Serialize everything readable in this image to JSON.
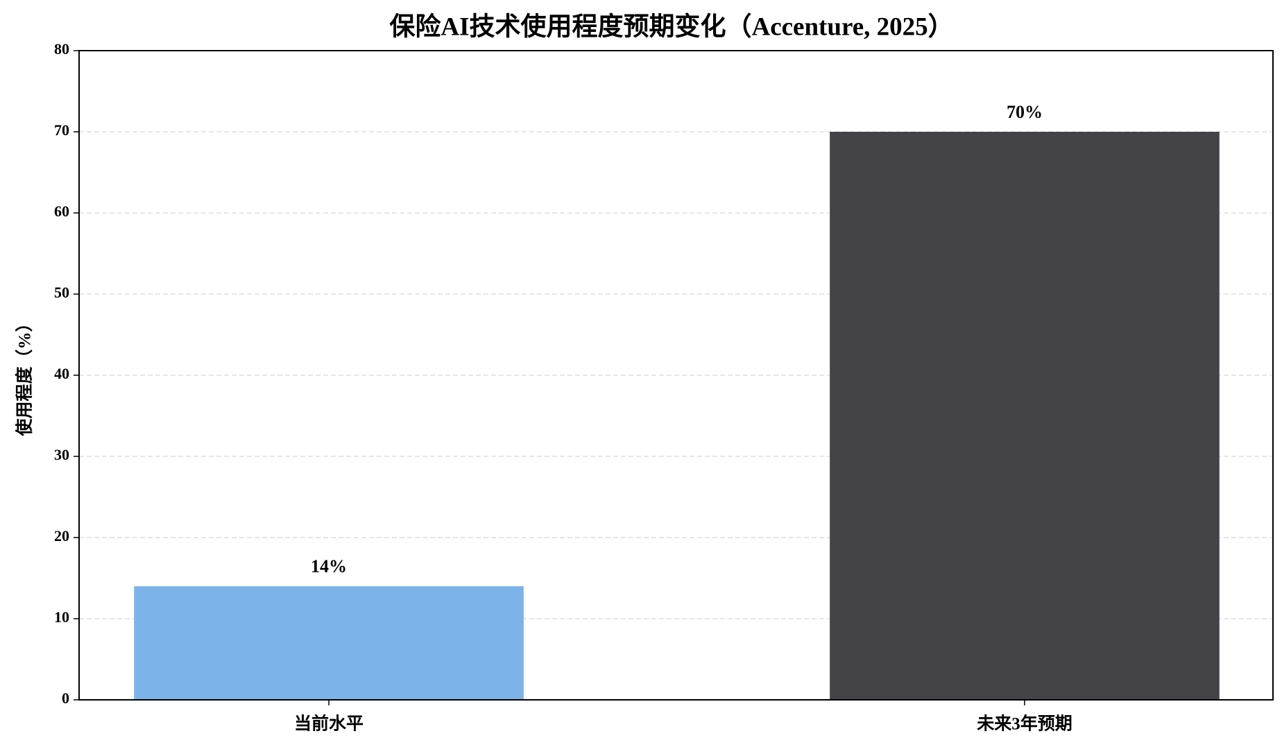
{
  "chart_data": {
    "type": "bar",
    "title": "保险AI技术使用程度预期变化（Accenture, 2025）",
    "ylabel": "使用程度（%）",
    "categories": [
      "当前水平",
      "未来3年预期"
    ],
    "values": [
      14,
      70
    ],
    "value_labels": [
      "14%",
      "70%"
    ],
    "colors": [
      "#7cb3e9",
      "#444348"
    ],
    "ylim": [
      0,
      80
    ],
    "yticks": [
      0,
      10,
      20,
      30,
      40,
      50,
      60,
      70,
      80
    ],
    "grid": true
  }
}
